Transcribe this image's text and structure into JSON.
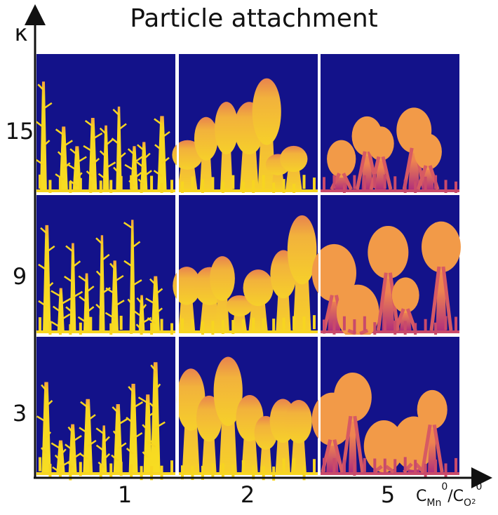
{
  "title": "Particle attachment",
  "y_axis_label": "κ",
  "kappa_values": [
    15,
    9,
    3
  ],
  "ratio_values": [
    1,
    2,
    5
  ],
  "x_axis_label": {
    "parts": [
      {
        "text": "C"
      },
      {
        "text": "Mn",
        "pos": "sub"
      },
      {
        "text": "0",
        "pos": "sup"
      },
      {
        "text": "/C"
      },
      {
        "text": "O",
        "pos": "sub"
      },
      {
        "text": "2",
        "pos": "subsub"
      },
      {
        "text": "0",
        "pos": "sup"
      }
    ]
  }
}
